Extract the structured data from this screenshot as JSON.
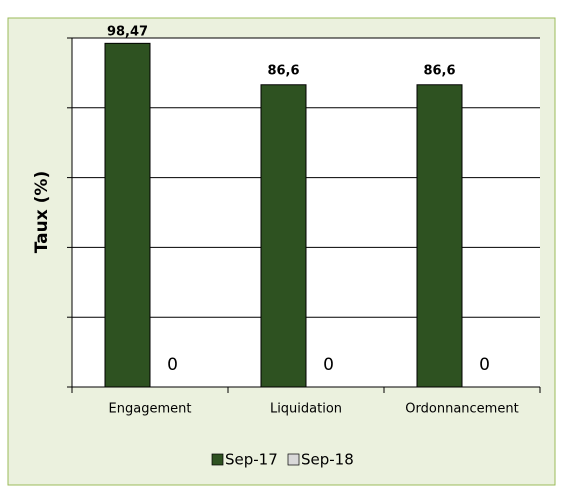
{
  "chart_data": {
    "type": "bar",
    "y_label": "Taux (%)",
    "categories": [
      "Engagement",
      "Liquidation",
      "Ordonnancement"
    ],
    "series": [
      {
        "name": "Sep-17",
        "color": "#2e5221",
        "values": [
          98.47,
          86.6,
          86.6
        ],
        "value_labels": [
          "98,47",
          "86,6",
          "86,6"
        ]
      },
      {
        "name": "Sep-18",
        "color": "#d9d9d9",
        "values": [
          0,
          0,
          0
        ]
      }
    ],
    "ylim": [
      0,
      100
    ],
    "yticks": [
      0,
      20,
      40,
      60,
      80,
      100
    ],
    "grid": true,
    "legend": "bottom"
  }
}
